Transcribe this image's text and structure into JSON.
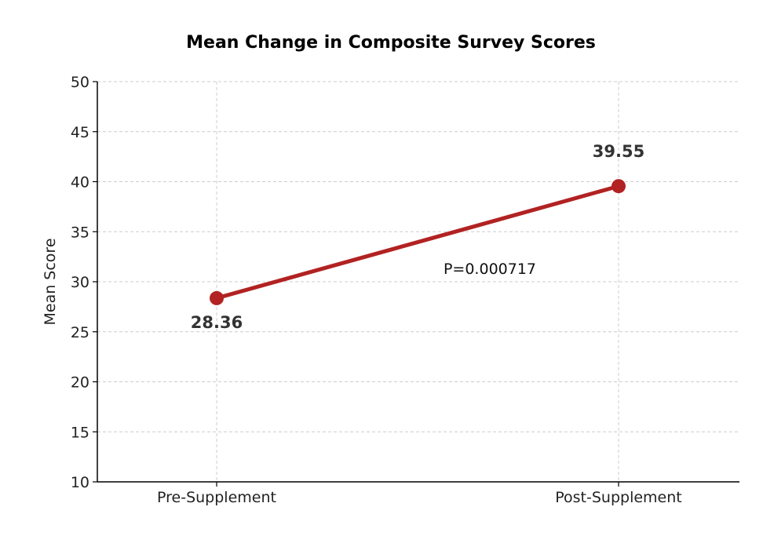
{
  "chart_data": {
    "type": "line",
    "title": "Mean Change in Composite Survey Scores",
    "xlabel": "",
    "ylabel": "Mean Score",
    "categories": [
      "Pre-Supplement",
      "Post-Supplement"
    ],
    "series": [
      {
        "values": [
          28.36,
          39.55
        ],
        "color": "#b22222"
      }
    ],
    "data_labels": [
      "28.36",
      "39.55"
    ],
    "annotation": "P=0.000717",
    "ylim": [
      10,
      50
    ],
    "yticks": [
      "10",
      "15",
      "20",
      "25",
      "30",
      "35",
      "40",
      "45",
      "50"
    ],
    "grid": true
  }
}
